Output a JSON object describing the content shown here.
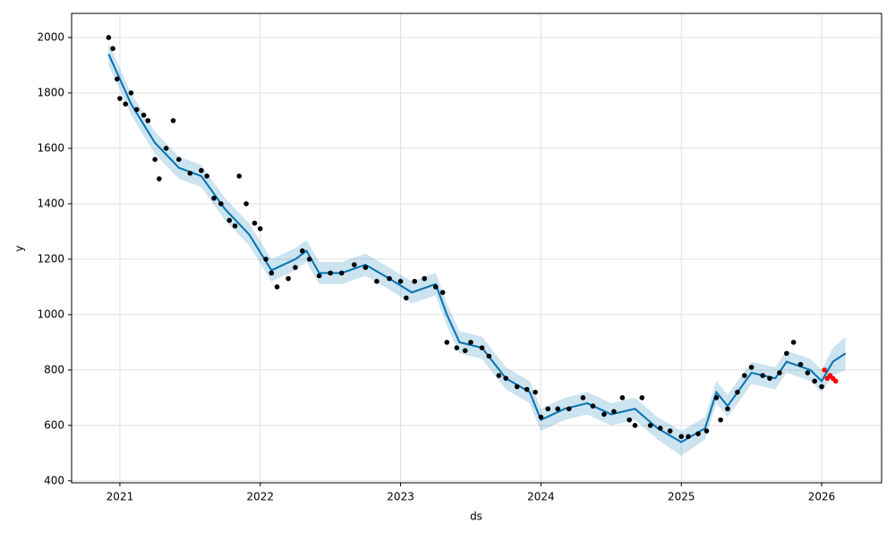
{
  "chart_data": {
    "type": "forecast",
    "xlabel": "ds",
    "ylabel": "y",
    "xlim": [
      2020.656,
      2026.427
    ],
    "xticks": [
      2021,
      2022,
      2023,
      2024,
      2025,
      2026
    ],
    "ylim": [
      393,
      2087
    ],
    "yticks": [
      400,
      600,
      800,
      1000,
      1200,
      1400,
      1600,
      1800,
      2000
    ],
    "grid": true,
    "observed": {
      "color": "#000000",
      "x": [
        2020.92,
        2020.95,
        2020.98,
        2021.0,
        2021.04,
        2021.08,
        2021.12,
        2021.17,
        2021.2,
        2021.25,
        2021.28,
        2021.33,
        2021.38,
        2021.42,
        2021.5,
        2021.58,
        2021.62,
        2021.67,
        2021.72,
        2021.78,
        2021.82,
        2021.85,
        2021.9,
        2021.96,
        2022.0,
        2022.04,
        2022.08,
        2022.12,
        2022.2,
        2022.25,
        2022.3,
        2022.35,
        2022.42,
        2022.5,
        2022.58,
        2022.67,
        2022.75,
        2022.83,
        2022.92,
        2023.0,
        2023.04,
        2023.1,
        2023.17,
        2023.25,
        2023.3,
        2023.33,
        2023.4,
        2023.46,
        2023.5,
        2023.58,
        2023.63,
        2023.7,
        2023.75,
        2023.83,
        2023.9,
        2023.96,
        2024.0,
        2024.05,
        2024.12,
        2024.2,
        2024.3,
        2024.37,
        2024.45,
        2024.52,
        2024.58,
        2024.63,
        2024.67,
        2024.72,
        2024.78,
        2024.85,
        2024.92,
        2025.0,
        2025.05,
        2025.12,
        2025.18,
        2025.25,
        2025.28,
        2025.33,
        2025.4,
        2025.45,
        2025.5,
        2025.58,
        2025.63,
        2025.7,
        2025.75,
        2025.8,
        2025.85,
        2025.9,
        2025.95,
        2026.0
      ],
      "y": [
        2000,
        1960,
        1850,
        1780,
        1760,
        1800,
        1740,
        1720,
        1700,
        1560,
        1490,
        1600,
        1700,
        1560,
        1510,
        1520,
        1500,
        1420,
        1400,
        1340,
        1320,
        1500,
        1400,
        1330,
        1310,
        1200,
        1150,
        1100,
        1130,
        1170,
        1230,
        1200,
        1140,
        1150,
        1150,
        1180,
        1170,
        1120,
        1130,
        1120,
        1060,
        1120,
        1130,
        1100,
        1080,
        900,
        880,
        870,
        900,
        880,
        850,
        780,
        770,
        740,
        730,
        720,
        630,
        660,
        660,
        660,
        700,
        670,
        640,
        650,
        700,
        620,
        600,
        700,
        600,
        590,
        580,
        560,
        560,
        570,
        580,
        700,
        620,
        660,
        720,
        780,
        810,
        780,
        770,
        790,
        860,
        900,
        820,
        790,
        760,
        740
      ]
    },
    "future_observed": {
      "color": "#ff0000",
      "x": [
        2026.02,
        2026.04,
        2026.06,
        2026.08,
        2026.1
      ],
      "y": [
        800,
        770,
        780,
        770,
        760
      ]
    },
    "forecast": {
      "color": "#0072b2",
      "x": [
        2020.92,
        2021.08,
        2021.25,
        2021.42,
        2021.58,
        2021.75,
        2021.92,
        2022.08,
        2022.25,
        2022.33,
        2022.42,
        2022.58,
        2022.75,
        2022.92,
        2023.08,
        2023.25,
        2023.33,
        2023.42,
        2023.58,
        2023.75,
        2023.92,
        2024.0,
        2024.17,
        2024.33,
        2024.5,
        2024.67,
        2024.83,
        2025.0,
        2025.17,
        2025.25,
        2025.33,
        2025.5,
        2025.67,
        2025.75,
        2025.92,
        2026.0,
        2026.08,
        2026.17
      ],
      "y": [
        1940,
        1760,
        1620,
        1530,
        1500,
        1380,
        1290,
        1160,
        1200,
        1230,
        1150,
        1150,
        1180,
        1130,
        1080,
        1110,
        1000,
        900,
        880,
        770,
        720,
        620,
        660,
        680,
        640,
        660,
        590,
        540,
        590,
        720,
        670,
        790,
        770,
        830,
        800,
        760,
        830,
        860
      ],
      "lower": [
        1900,
        1720,
        1580,
        1490,
        1460,
        1340,
        1250,
        1120,
        1160,
        1190,
        1110,
        1110,
        1140,
        1090,
        1040,
        1070,
        960,
        860,
        840,
        730,
        680,
        580,
        620,
        640,
        600,
        620,
        550,
        490,
        550,
        680,
        630,
        750,
        730,
        790,
        760,
        720,
        780,
        800
      ],
      "upper": [
        1980,
        1800,
        1660,
        1570,
        1540,
        1420,
        1330,
        1200,
        1240,
        1270,
        1190,
        1190,
        1220,
        1170,
        1120,
        1150,
        1040,
        940,
        920,
        810,
        760,
        660,
        700,
        720,
        680,
        700,
        630,
        580,
        630,
        760,
        710,
        830,
        810,
        870,
        840,
        800,
        880,
        920
      ]
    }
  }
}
